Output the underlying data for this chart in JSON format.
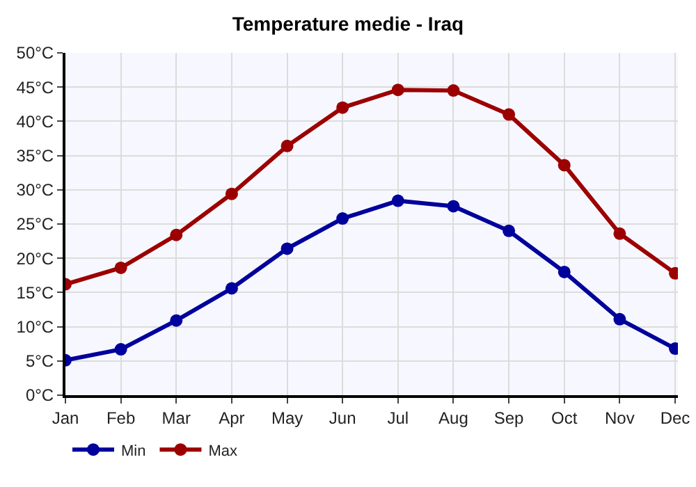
{
  "chart_data": {
    "type": "line",
    "title": "Temperature medie - Iraq",
    "categories": [
      "Jan",
      "Feb",
      "Mar",
      "Apr",
      "May",
      "Jun",
      "Jul",
      "Aug",
      "Sep",
      "Oct",
      "Nov",
      "Dec"
    ],
    "series": [
      {
        "name": "Min",
        "color": "#00009c",
        "values": [
          5.1,
          6.7,
          10.9,
          15.6,
          21.4,
          25.8,
          28.4,
          27.6,
          24,
          18,
          11.1,
          6.8
        ]
      },
      {
        "name": "Max",
        "color": "#9c0000",
        "values": [
          16.2,
          18.6,
          23.4,
          29.4,
          36.4,
          42,
          44.6,
          44.5,
          41,
          33.6,
          23.6,
          17.8
        ]
      }
    ],
    "ylim": [
      0,
      50
    ],
    "yticks": [
      {
        "value": 0,
        "label": "0°C"
      },
      {
        "value": 5,
        "label": "5°C"
      },
      {
        "value": 10,
        "label": "10°C"
      },
      {
        "value": 15,
        "label": "15°C"
      },
      {
        "value": 20,
        "label": "20°C"
      },
      {
        "value": 25,
        "label": "25°C"
      },
      {
        "value": 30,
        "label": "30°C"
      },
      {
        "value": 35,
        "label": "35°C"
      },
      {
        "value": 40,
        "label": "40°C"
      },
      {
        "value": 45,
        "label": "45°C"
      },
      {
        "value": 50,
        "label": "50°C"
      }
    ],
    "grid": true,
    "legend": "bottom left",
    "marker": "circle",
    "line_style": "solid"
  }
}
